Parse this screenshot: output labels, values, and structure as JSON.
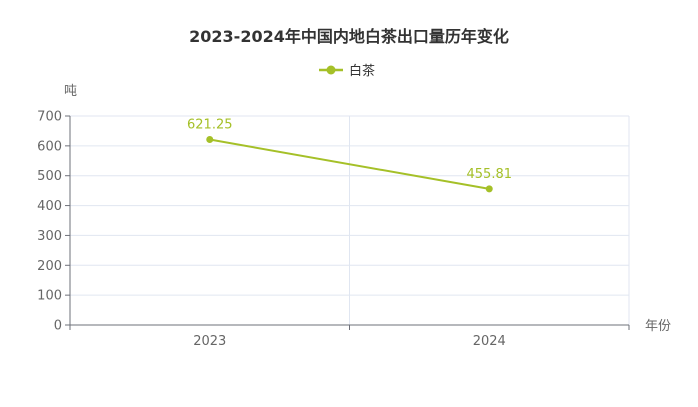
{
  "chart_data": {
    "type": "line",
    "title": "2023-2024年中国内地白茶出口量历年变化",
    "xlabel": "年份",
    "ylabel": "吨",
    "categories": [
      "2023",
      "2024"
    ],
    "ylim": [
      0,
      700
    ],
    "yticks": [
      0,
      100,
      200,
      300,
      400,
      500,
      600,
      700
    ],
    "grid": true,
    "legend_position": "top-center",
    "series": [
      {
        "name": "白茶",
        "values": [
          621.25,
          455.81
        ],
        "labels": [
          "621.25",
          "455.81"
        ],
        "color": "#a5c028"
      }
    ]
  }
}
